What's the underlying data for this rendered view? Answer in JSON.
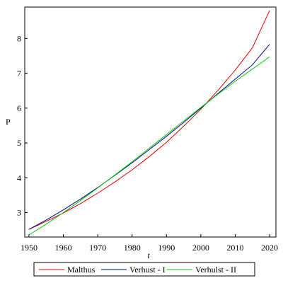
{
  "chart_data": {
    "type": "line",
    "title": "",
    "xlabel": "t",
    "ylabel": "P",
    "xlim": [
      1950,
      2020
    ],
    "ylim": [
      2.3,
      8.9
    ],
    "x_ticks": [
      1950,
      1960,
      1970,
      1980,
      1990,
      2000,
      2010,
      2020
    ],
    "y_ticks": [
      3,
      4,
      5,
      6,
      7,
      8
    ],
    "grid": false,
    "legend_position": "bottom",
    "x": [
      1950,
      1955,
      1960,
      1965,
      1970,
      1975,
      1980,
      1985,
      1990,
      1995,
      2000,
      2005,
      2010,
      2015,
      2020
    ],
    "series": [
      {
        "name": "Malthus",
        "color": "#e00000",
        "values": [
          2.52,
          2.75,
          2.99,
          3.26,
          3.56,
          3.88,
          4.23,
          4.61,
          5.02,
          5.48,
          5.97,
          6.51,
          7.09,
          7.73,
          8.8
        ]
      },
      {
        "name": "Verhust - I",
        "color": "#000099",
        "values": [
          2.52,
          2.79,
          3.08,
          3.39,
          3.72,
          4.07,
          4.43,
          4.81,
          5.19,
          5.59,
          6.0,
          6.42,
          6.83,
          7.24,
          7.83
        ]
      },
      {
        "name": "Verhulst - II",
        "color": "#00cc00",
        "values": [
          2.36,
          2.67,
          3.0,
          3.35,
          3.71,
          4.08,
          4.46,
          4.85,
          5.24,
          5.63,
          6.02,
          6.4,
          6.77,
          7.12,
          7.47
        ]
      }
    ]
  }
}
